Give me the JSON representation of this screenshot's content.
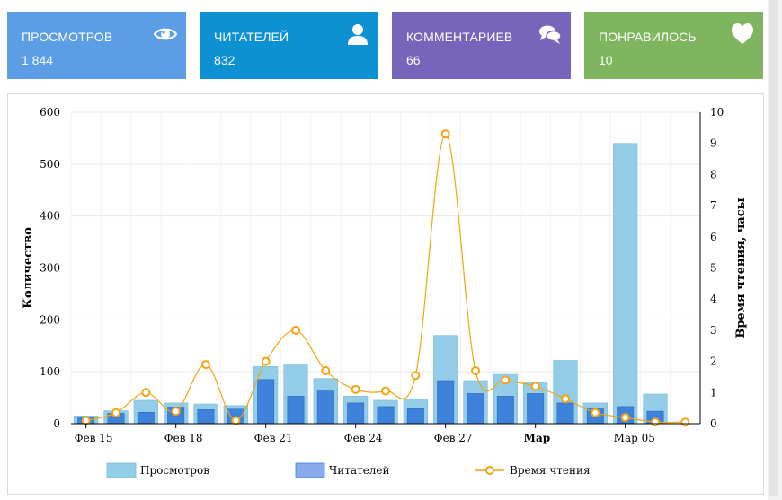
{
  "stats": [
    {
      "label": "ПРОСМОТРОВ",
      "value": "1 844",
      "color": "#5c9ee6",
      "icon": "eye-icon"
    },
    {
      "label": "ЧИТАТЕЛЕЙ",
      "value": "832",
      "color": "#0d91d2",
      "icon": "user-icon"
    },
    {
      "label": "КОММЕНТАРИЕВ",
      "value": "66",
      "color": "#7765bb",
      "icon": "comments-icon"
    },
    {
      "label": "ПОНРАВИЛОСЬ",
      "value": "10",
      "color": "#7fb55f",
      "icon": "heart-icon"
    }
  ],
  "chart_data": {
    "type": "bar",
    "title": "",
    "ylabel": "Количество",
    "y2label": "Время чтения, часы",
    "ylim": [
      0,
      600
    ],
    "y2lim": [
      0,
      10
    ],
    "yticks": [
      "0",
      "100",
      "200",
      "300",
      "400",
      "500",
      "600"
    ],
    "y2ticks": [
      "0",
      "1",
      "2",
      "3",
      "4",
      "5",
      "6",
      "7",
      "8",
      "9",
      "10"
    ],
    "x_labels": [
      "Фев 15",
      "Фев 18",
      "Фев 21",
      "Фев 24",
      "Фев 27",
      "Мар",
      "Мар 05"
    ],
    "grid": true,
    "legend_position": "bottom",
    "series": [
      {
        "name": "Просмотров",
        "type": "bar",
        "axis": "left",
        "color": "#93cde8",
        "values": [
          15,
          25,
          45,
          40,
          38,
          35,
          110,
          115,
          87,
          53,
          45,
          48,
          170,
          83,
          95,
          80,
          122,
          40,
          540,
          57,
          0
        ]
      },
      {
        "name": "Читателей",
        "type": "bar",
        "axis": "left",
        "color": "#3e82db",
        "values": [
          13,
          20,
          22,
          32,
          27,
          28,
          85,
          53,
          63,
          40,
          33,
          29,
          83,
          58,
          53,
          58,
          40,
          30,
          33,
          24,
          0
        ]
      },
      {
        "name": "Время чтения",
        "type": "line",
        "axis": "right",
        "color": "#f5a30f",
        "values": [
          0.1,
          0.35,
          1.0,
          0.4,
          1.9,
          0.1,
          2.0,
          3.0,
          1.7,
          1.1,
          1.05,
          1.55,
          9.3,
          1.7,
          1.4,
          1.2,
          0.8,
          0.35,
          0.2,
          0.05,
          0.05
        ]
      }
    ]
  }
}
